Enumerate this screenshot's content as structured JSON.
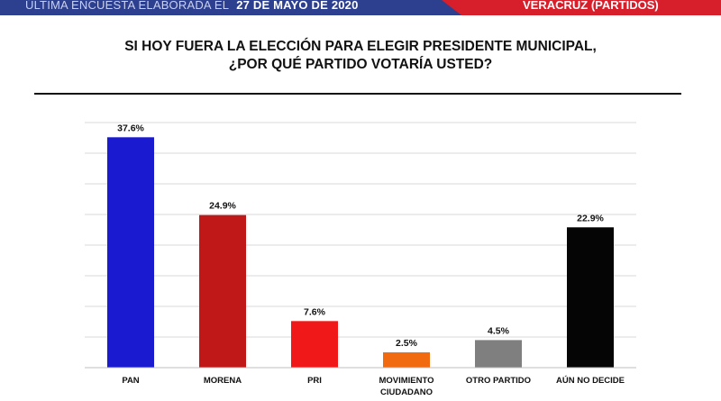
{
  "header": {
    "left_text": "ÚLTIMA ENCUESTA ELABORADA EL",
    "date": "27 DE MAYO DE 2020",
    "right_text": "VERACRUZ (PARTIDOS)"
  },
  "chart_data": {
    "type": "bar",
    "title": "SI HOY FUERA LA ELECCIÓN PARA ELEGIR PRESIDENTE MUNICIPAL,",
    "subtitle": "¿POR QUÉ PARTIDO VOTARÍA USTED?",
    "categories": [
      "PAN",
      "MORENA",
      "PRI",
      "MOVIMIENTO\nCIUDADANO",
      "OTRO PARTIDO",
      "AÚN NO DECIDE"
    ],
    "values": [
      37.6,
      24.9,
      7.6,
      2.5,
      4.5,
      22.9
    ],
    "value_labels": [
      "37.6%",
      "24.9%",
      "7.6%",
      "2.5%",
      "4.5%",
      "22.9%"
    ],
    "colors": [
      "#1a1ad0",
      "#c01818",
      "#f01818",
      "#f26a10",
      "#7f7f7f",
      "#050505"
    ],
    "ylim": [
      0,
      40
    ],
    "grid": true,
    "xlabel": "",
    "ylabel": ""
  }
}
